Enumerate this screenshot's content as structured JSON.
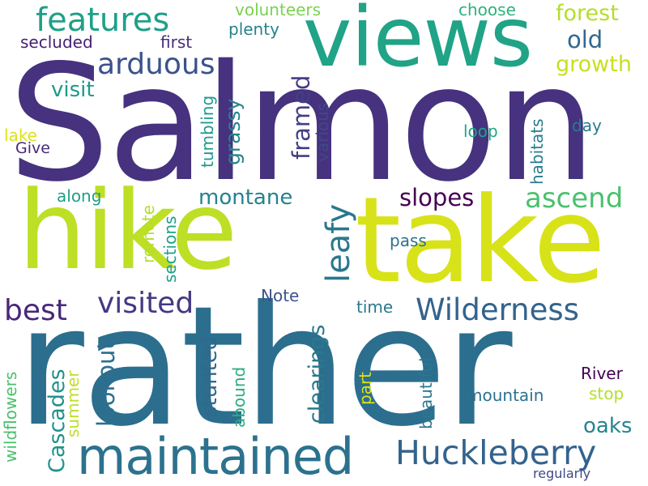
{
  "words": [
    {
      "text": "Salmon",
      "color": "#46327e",
      "vertical": false
    },
    {
      "text": "rather",
      "color": "#2c6e8e",
      "vertical": false
    },
    {
      "text": "hike",
      "color": "#bddf26",
      "vertical": false
    },
    {
      "text": "take",
      "color": "#d8e219",
      "vertical": false
    },
    {
      "text": "views",
      "color": "#20a386",
      "vertical": false
    },
    {
      "text": "maintained",
      "color": "#2c728e",
      "vertical": false
    },
    {
      "text": "Huckleberry",
      "color": "#33638d",
      "vertical": false
    },
    {
      "text": "Wilderness",
      "color": "#33638d",
      "vertical": false
    },
    {
      "text": "features",
      "color": "#1fa088",
      "vertical": false
    },
    {
      "text": "arduous",
      "color": "#3b528b",
      "vertical": false
    },
    {
      "text": "visited",
      "color": "#443983",
      "vertical": false
    },
    {
      "text": "best",
      "color": "#482878",
      "vertical": false
    },
    {
      "text": "ascend",
      "color": "#4ac16d",
      "vertical": false
    },
    {
      "text": "slopes",
      "color": "#440154",
      "vertical": false
    },
    {
      "text": "forest",
      "color": "#b5de2b",
      "vertical": false
    },
    {
      "text": "growth",
      "color": "#c8e020",
      "vertical": false
    },
    {
      "text": "old",
      "color": "#31688e",
      "vertical": false
    },
    {
      "text": "leafy",
      "color": "#2a788e",
      "vertical": true
    },
    {
      "text": "framed",
      "color": "#433e85",
      "vertical": true
    },
    {
      "text": "Cascades",
      "color": "#21918c",
      "vertical": true
    },
    {
      "text": "lookout",
      "color": "#2e6e8e",
      "vertical": true
    },
    {
      "text": "montane",
      "color": "#26828e",
      "vertical": false
    },
    {
      "text": "clearings",
      "color": "#2a788e",
      "vertical": true
    },
    {
      "text": "stunted",
      "color": "#31688e",
      "vertical": true
    },
    {
      "text": "oaks",
      "color": "#25848e",
      "vertical": false
    },
    {
      "text": "visit",
      "color": "#1f9a8a",
      "vertical": false
    },
    {
      "text": "grassy",
      "color": "#25848e",
      "vertical": true
    },
    {
      "text": "secluded",
      "color": "#482173",
      "vertical": false
    },
    {
      "text": "first",
      "color": "#472d7b",
      "vertical": false
    },
    {
      "text": "plenty",
      "color": "#26828e",
      "vertical": false
    },
    {
      "text": "volunteers",
      "color": "#7ad151",
      "vertical": false
    },
    {
      "text": "choose",
      "color": "#2db27d",
      "vertical": false
    },
    {
      "text": "mountain",
      "color": "#2c728e",
      "vertical": false
    },
    {
      "text": "River",
      "color": "#440154",
      "vertical": false
    },
    {
      "text": "stop",
      "color": "#b5de2b",
      "vertical": false
    },
    {
      "text": "loop",
      "color": "#20a386",
      "vertical": false
    },
    {
      "text": "day",
      "color": "#287d8e",
      "vertical": false
    },
    {
      "text": "habitats",
      "color": "#287c8e",
      "vertical": true
    },
    {
      "text": "various",
      "color": "#3e4989",
      "vertical": true
    },
    {
      "text": "tumbling",
      "color": "#1f988b",
      "vertical": true
    },
    {
      "text": "sections",
      "color": "#1fa188",
      "vertical": true
    },
    {
      "text": "remote",
      "color": "#b5de2b",
      "vertical": true
    },
    {
      "text": "along",
      "color": "#1f9e89",
      "vertical": false
    },
    {
      "text": "pass",
      "color": "#2c728e",
      "vertical": false
    },
    {
      "text": "Note",
      "color": "#3b528b",
      "vertical": false
    },
    {
      "text": "time",
      "color": "#2a788e",
      "vertical": false
    },
    {
      "text": "beautiful",
      "color": "#2a788e",
      "vertical": true
    },
    {
      "text": "part",
      "color": "#dde318",
      "vertical": true
    },
    {
      "text": "abound",
      "color": "#28ae80",
      "vertical": true
    },
    {
      "text": "summer",
      "color": "#bddf26",
      "vertical": true
    },
    {
      "text": "wildflowers",
      "color": "#4ac16d",
      "vertical": true
    },
    {
      "text": "lake",
      "color": "#dde318",
      "vertical": false
    },
    {
      "text": "Give",
      "color": "#482878",
      "vertical": false
    },
    {
      "text": "regularly",
      "color": "#3e4989",
      "vertical": false
    }
  ]
}
